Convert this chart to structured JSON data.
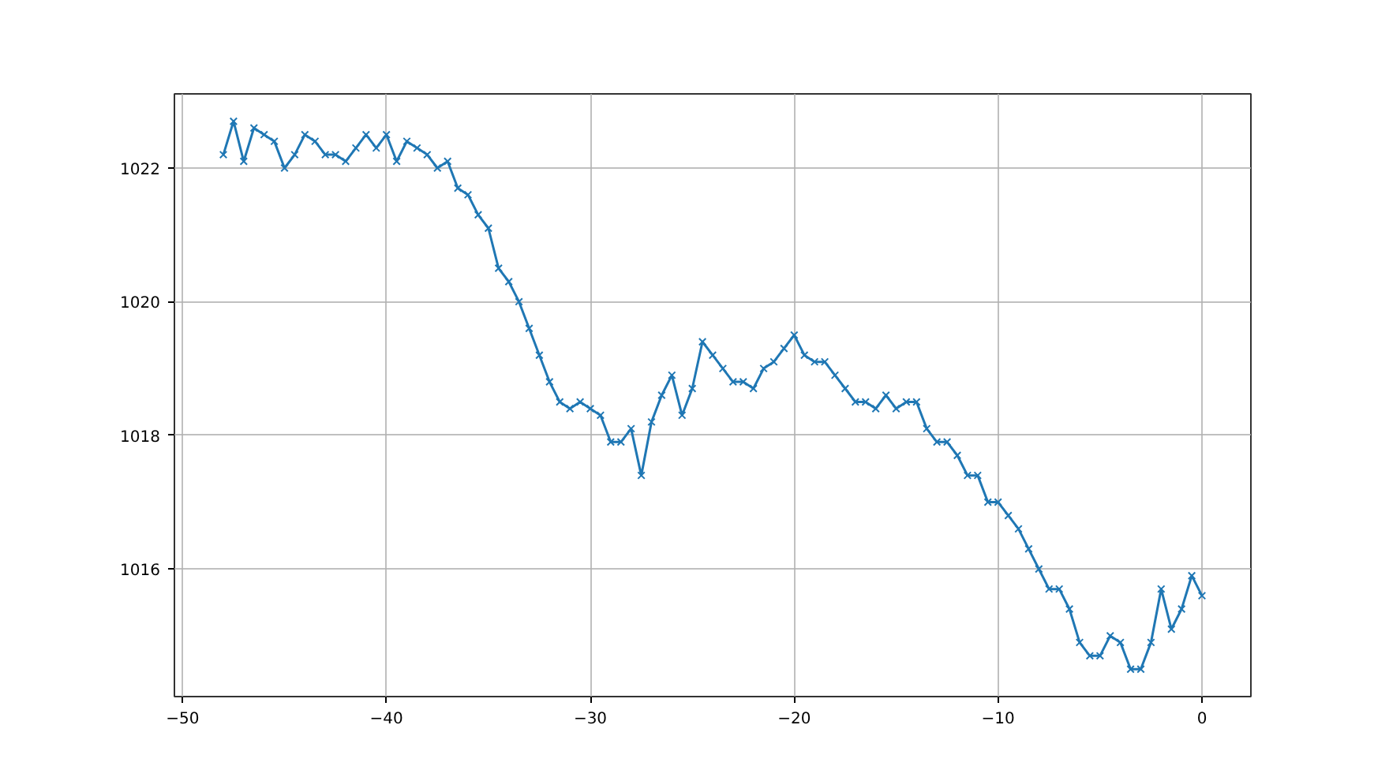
{
  "chart_data": {
    "type": "line",
    "marker": "cross",
    "grid": true,
    "xlim": [
      -50.4,
      2.4
    ],
    "ylim": [
      1014.09,
      1023.11
    ],
    "xticks": [
      {
        "value": -50,
        "label": "−50"
      },
      {
        "value": -40,
        "label": "−40"
      },
      {
        "value": -30,
        "label": "−30"
      },
      {
        "value": -20,
        "label": "−20"
      },
      {
        "value": -10,
        "label": "−10"
      },
      0
    ],
    "yticks": [
      1016,
      1018,
      1020,
      1022
    ],
    "x": [
      -48,
      -47.5,
      -47,
      -46.5,
      -46,
      -45.5,
      -45,
      -44.5,
      -44,
      -43.5,
      -43,
      -42.5,
      -42,
      -41.5,
      -41,
      -40.5,
      -40,
      -39.5,
      -39,
      -38.5,
      -38,
      -37.5,
      -37,
      -36.5,
      -36,
      -35.5,
      -35,
      -34.5,
      -34,
      -33.5,
      -33,
      -32.5,
      -32,
      -31.5,
      -31,
      -30.5,
      -30,
      -29.5,
      -29,
      -28.5,
      -28,
      -27.5,
      -27,
      -26.5,
      -26,
      -25.5,
      -25,
      -24.5,
      -24,
      -23.5,
      -23,
      -22.5,
      -22,
      -21.5,
      -21,
      -20.5,
      -20,
      -19.5,
      -19,
      -18.5,
      -18,
      -17.5,
      -17,
      -16.5,
      -16,
      -15.5,
      -15,
      -14.5,
      -14,
      -13.5,
      -13,
      -12.5,
      -12,
      -11.5,
      -11,
      -10.5,
      -10,
      -9.5,
      -9,
      -8.5,
      -8,
      -7.5,
      -7,
      -6.5,
      -6,
      -5.5,
      -5,
      -4.5,
      -4,
      -3.5,
      -3,
      -2.5,
      -2,
      -1.5,
      -1,
      -0.5,
      0
    ],
    "series": [
      {
        "color": "#1f77b4",
        "values": [
          1022.2,
          1022.7,
          1022.1,
          1022.6,
          1022.5,
          1022.4,
          1022.0,
          1022.2,
          1022.5,
          1022.4,
          1022.2,
          1022.2,
          1022.1,
          1022.3,
          1022.5,
          1022.3,
          1022.5,
          1022.1,
          1022.4,
          1022.3,
          1022.2,
          1022.0,
          1022.1,
          1021.7,
          1021.6,
          1021.3,
          1021.1,
          1020.5,
          1020.3,
          1020.0,
          1019.6,
          1019.2,
          1018.8,
          1018.5,
          1018.4,
          1018.5,
          1018.4,
          1018.3,
          1017.9,
          1017.9,
          1018.1,
          1017.4,
          1018.2,
          1018.6,
          1018.9,
          1018.3,
          1018.7,
          1019.4,
          1019.2,
          1019.0,
          1018.8,
          1018.8,
          1018.7,
          1019.0,
          1019.1,
          1019.3,
          1019.5,
          1019.2,
          1019.1,
          1019.1,
          1018.9,
          1018.7,
          1018.5,
          1018.5,
          1018.4,
          1018.6,
          1018.4,
          1018.5,
          1018.5,
          1018.1,
          1017.9,
          1017.9,
          1017.7,
          1017.4,
          1017.4,
          1017.0,
          1017.0,
          1016.8,
          1016.6,
          1016.3,
          1016.0,
          1015.7,
          1015.7,
          1015.4,
          1014.9,
          1014.7,
          1014.7,
          1015.0,
          1014.9,
          1014.5,
          1014.5,
          1014.9,
          1015.7,
          1015.1,
          1015.4,
          1015.9,
          1015.6
        ]
      }
    ]
  }
}
